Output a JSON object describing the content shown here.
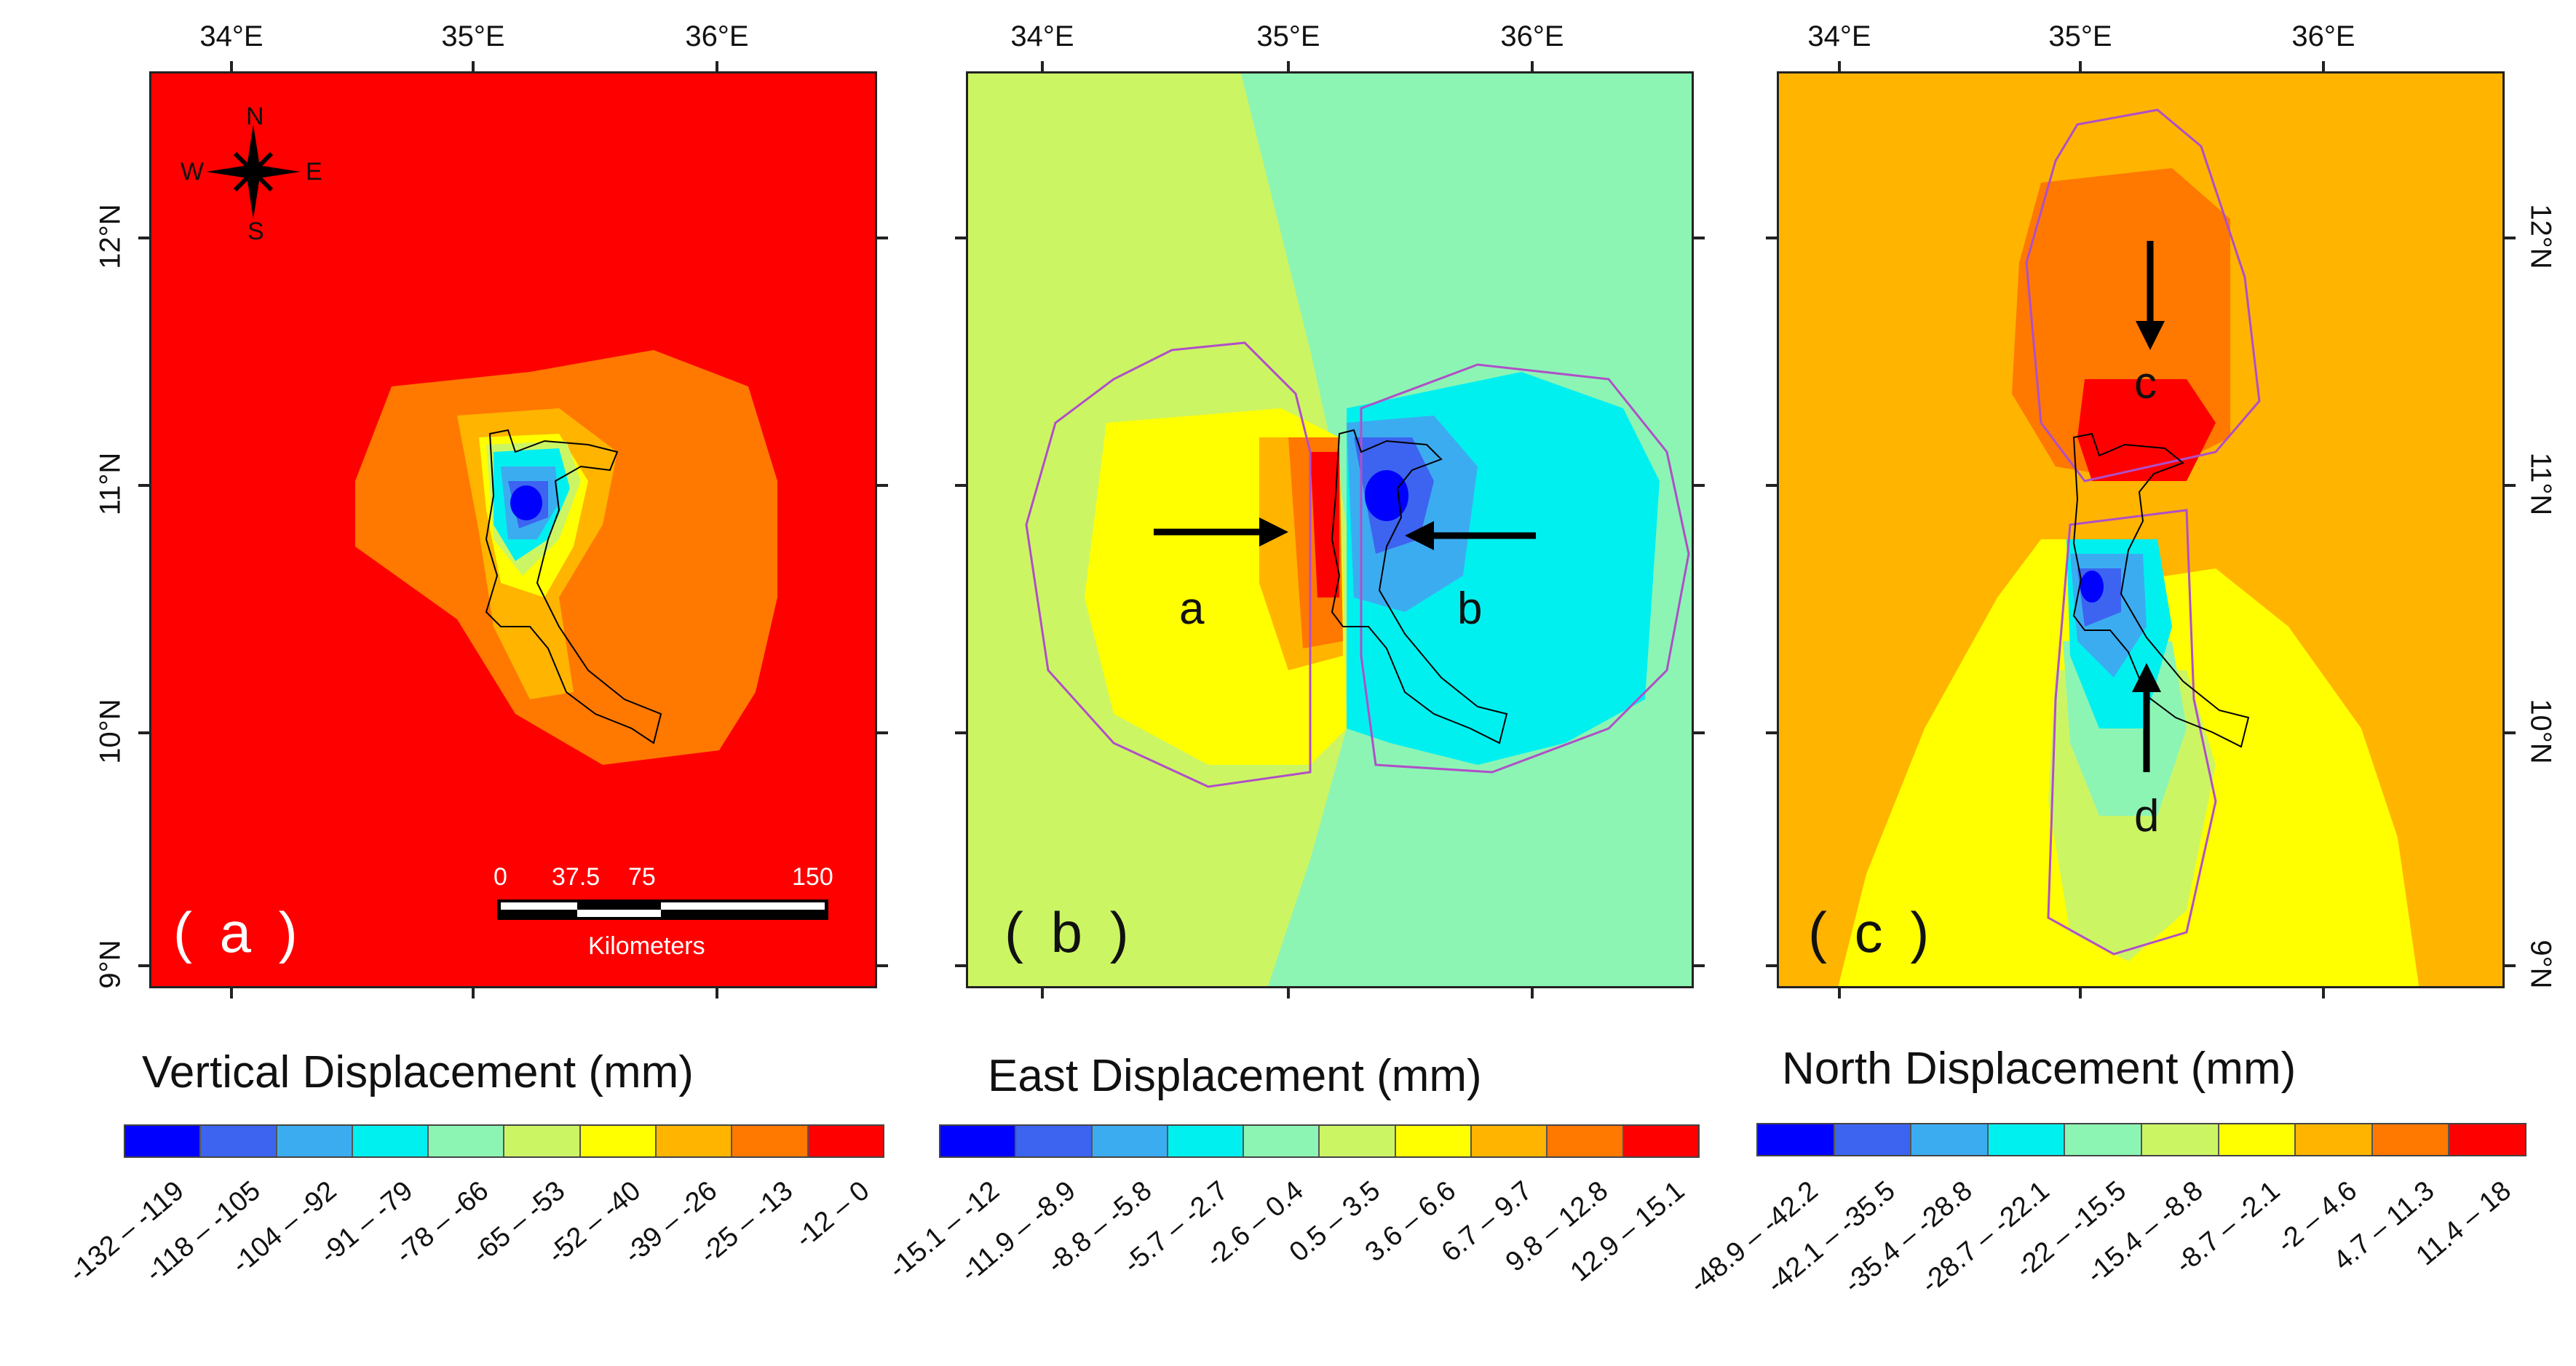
{
  "axes": {
    "lon_ticks": [
      "34°E",
      "35°E",
      "36°E"
    ],
    "lat_ticks": [
      "12°N",
      "11°N",
      "10°N",
      "9°N"
    ]
  },
  "compass": {
    "n": "N",
    "s": "S",
    "e": "E",
    "w": "W"
  },
  "scale_bar": {
    "ticks": [
      "0",
      "37.5",
      "75",
      "150"
    ],
    "unit": "Kilometers"
  },
  "panels": [
    {
      "tag": "( a )",
      "legend_title": "Vertical Displacement (mm)",
      "background": "#ff0000",
      "classes": [
        "-132 – -119",
        "-118 – -105",
        "-104 – -92",
        "-91 – -79",
        "-78 – -66",
        "-65 – -53",
        "-52 – -40",
        "-39 – -26",
        "-25 – -13",
        "-12 – 0"
      ],
      "colors": [
        "#0000ff",
        "#3c64f0",
        "#3cacf0",
        "#00f0f0",
        "#8cf5b4",
        "#ccf564",
        "#ffff00",
        "#ffb400",
        "#ff7800",
        "#ff0000"
      ]
    },
    {
      "tag": "( b )",
      "legend_title": "East Displacement (mm)",
      "arrow_labels": [
        "a",
        "b"
      ],
      "classes": [
        "-15.1 – -12",
        "-11.9 – -8.9",
        "-8.8 – -5.8",
        "-5.7 – -2.7",
        "-2.6 – 0.4",
        "0.5 – 3.5",
        "3.6 – 6.6",
        "6.7 – 9.7",
        "9.8 – 12.8",
        "12.9 – 15.1"
      ],
      "colors": [
        "#0000ff",
        "#3c64f0",
        "#3cacf0",
        "#00f0f0",
        "#8cf5b4",
        "#ccf564",
        "#ffff00",
        "#ffb400",
        "#ff7800",
        "#ff0000"
      ]
    },
    {
      "tag": "( c )",
      "legend_title": "North Displacement (mm)",
      "arrow_labels": [
        "c",
        "d"
      ],
      "classes": [
        "-48.9 – -42.2",
        "-42.1 – -35.5",
        "-35.4 – -28.8",
        "-28.7 – -22.1",
        "-22 – -15.5",
        "-15.4 – -8.8",
        "-8.7 – -2.1",
        "-2 – 4.6",
        "4.7 – 11.3",
        "11.4 – 18"
      ],
      "colors": [
        "#0000ff",
        "#3c64f0",
        "#3cacf0",
        "#00f0f0",
        "#8cf5b4",
        "#ccf564",
        "#ffff00",
        "#ffb400",
        "#ff7800",
        "#ff0000"
      ]
    }
  ]
}
